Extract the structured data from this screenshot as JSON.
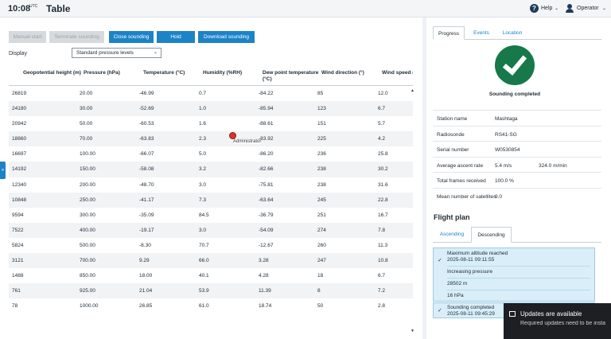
{
  "header": {
    "time": "10:08",
    "timezone": "UTC",
    "title": "Table",
    "help_label": "Help",
    "user_label": "Operator"
  },
  "toolbar": {
    "manual_start": "Manual start",
    "terminate_sounding": "Terminate sounding",
    "close_sounding": "Close sounding",
    "hold": "Hold",
    "download_sounding": "Download sounding"
  },
  "display": {
    "label": "Display",
    "selected": "Standard pressure levels"
  },
  "table": {
    "columns": [
      "Geopotential height (m)",
      "Pressure (hPa)",
      "Temperature (°C)",
      "Humidity (%RH)",
      "Dew point temperature (°C)",
      "Wind direction (°)",
      "Wind speed ("
    ],
    "rows": [
      [
        "26819",
        "20.00",
        "-46.99",
        "0.7",
        "-84.22",
        "85",
        "12.0"
      ],
      [
        "24180",
        "30.00",
        "-52.69",
        "1.0",
        "-85.94",
        "123",
        "6.7"
      ],
      [
        "20942",
        "50.00",
        "-60.53",
        "1.6",
        "-88.61",
        "151",
        "5.7"
      ],
      [
        "18860",
        "70.00",
        "-63.83",
        "2.3",
        "-83.92",
        "225",
        "4.2"
      ],
      [
        "16697",
        "100.00",
        "-66.07",
        "5.0",
        "-86.20",
        "236",
        "25.8"
      ],
      [
        "14192",
        "150.00",
        "-58.08",
        "3.2",
        "-82.66",
        "238",
        "30.2"
      ],
      [
        "12340",
        "200.00",
        "-48.70",
        "3.0",
        "-75.81",
        "238",
        "31.6"
      ],
      [
        "10848",
        "250.00",
        "-41.17",
        "7.3",
        "-63.64",
        "245",
        "22.8"
      ],
      [
        "9594",
        "300.00",
        "-35.09",
        "84.5",
        "-36.79",
        "251",
        "16.7"
      ],
      [
        "7522",
        "400.00",
        "-19.17",
        "3.0",
        "-54.09",
        "274",
        "7.8"
      ],
      [
        "5824",
        "500.00",
        "-8.30",
        "70.7",
        "-12.67",
        "260",
        "11.3"
      ],
      [
        "3121",
        "700.00",
        "9.29",
        "66.0",
        "3.28",
        "247",
        "10.8"
      ],
      [
        "1488",
        "850.00",
        "18.00",
        "40.1",
        "4.28",
        "18",
        "6.7"
      ],
      [
        "761",
        "925.00",
        "21.04",
        "53.9",
        "11.39",
        "8",
        "7.2"
      ],
      [
        "78",
        "1000.00",
        "26.85",
        "61.0",
        "18.74",
        "50",
        "2.8"
      ]
    ]
  },
  "cursor_label": "Administrator",
  "right_panel": {
    "tabs": [
      "Progress",
      "Events",
      "Location"
    ],
    "status": "Sounding completed",
    "info": [
      {
        "label": "Station name",
        "value": "Mashtaga",
        "value2": ""
      },
      {
        "label": "Radiosonde",
        "value": "RS41-SG",
        "value2": ""
      },
      {
        "label": "Serial number",
        "value": "W0530854",
        "value2": ""
      },
      {
        "label": "Average ascent rate",
        "value": "5.4 m/s",
        "value2": "324.0 m/min"
      },
      {
        "label": "Total frames received",
        "value": "100.0 %",
        "value2": ""
      },
      {
        "label": "Mean number of satellites",
        "value": "9.0",
        "value2": ""
      }
    ],
    "flight_plan": {
      "title": "Flight plan",
      "tabs": [
        "Ascending",
        "Descending"
      ],
      "event1_title": "Maximum altitude reached",
      "event1_time": "2025-08-11 09:11:55",
      "detail1": "Increasing pressure",
      "detail2": "28502 m",
      "detail3": "16 hPa",
      "event2_title": "Sounding completed",
      "event2_time": "2025-08-11 09:45:29"
    }
  },
  "toast": {
    "title": "Updates are available",
    "body": "Required updates need to be insta"
  }
}
